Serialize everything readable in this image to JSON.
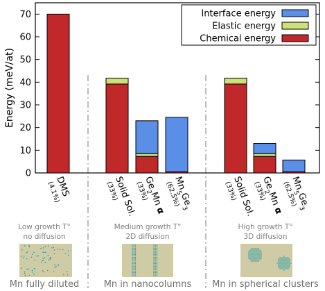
{
  "chart_data": {
    "type": "bar",
    "stacked": true,
    "ylabel": "Energy (meV/at)",
    "ylim": [
      0,
      75
    ],
    "yticks": [
      0,
      10,
      20,
      30,
      40,
      50,
      60,
      70
    ],
    "grid": false,
    "legend_position": "top-right",
    "categories": [
      {
        "name": "DMS",
        "sub": "(4.1%)"
      },
      {
        "name": "Solid Sol.",
        "sub": "(33%)"
      },
      {
        "name": "Ge2Mn α",
        "sub": "(33%)"
      },
      {
        "name": "Mn5Ge3",
        "sub": "(62.5%)"
      },
      {
        "name": "Solid Sol.",
        "sub": "(33%)"
      },
      {
        "name": "Ge2Mn α",
        "sub": "(33%)"
      },
      {
        "name": "Mn5Ge3",
        "sub": "(62.5%)"
      }
    ],
    "series": [
      {
        "name": "Chemical energy",
        "color": "#c0282a",
        "values": [
          70,
          39.2,
          7.3,
          0.5,
          39.2,
          7.3,
          0.5
        ]
      },
      {
        "name": "Elastic energy",
        "color": "#cde07a",
        "values": [
          0,
          2.6,
          1.2,
          0,
          2.6,
          1.2,
          0
        ]
      },
      {
        "name": "Interface energy",
        "color": "#5b8ee6",
        "values": [
          0,
          0,
          14.5,
          24.0,
          0,
          4.5,
          5.2
        ]
      }
    ],
    "legend": [
      "Interface energy",
      "Elastic energy",
      "Chemical energy"
    ]
  },
  "panels": [
    {
      "line1": "Low growth T°",
      "line2": "no diffusion",
      "caption": "Mn fully diluted"
    },
    {
      "line1": "Medium growth T°",
      "line2": "2D diffusion",
      "caption": "Mn in nanocolumns"
    },
    {
      "line1": "High growth T°",
      "line2": "3D diffusion",
      "caption": "Mn in spherical clusters"
    }
  ],
  "colors": {
    "axis": "#000000",
    "separator": "#909090",
    "panel_bg": "#cfcba5",
    "dots": "#2a9ca8"
  }
}
